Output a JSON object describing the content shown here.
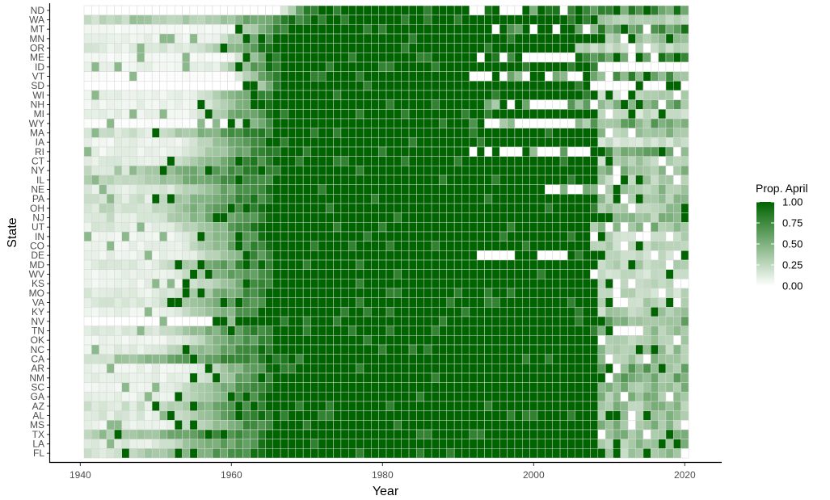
{
  "chart_data": {
    "type": "heatmap",
    "xlabel": "Year",
    "ylabel": "State",
    "x_start": 1941,
    "x_end": 2020,
    "xlim": [
      1936.5,
      2024.5
    ],
    "x_ticks": [
      "1940",
      "1960",
      "1980",
      "2000",
      "2020"
    ],
    "rows_top_to_bottom": [
      "ND",
      "WA",
      "MT",
      "MN",
      "OR",
      "ME",
      "ID",
      "VT",
      "SD",
      "WI",
      "NH",
      "MI",
      "WY",
      "MA",
      "IA",
      "RI",
      "CT",
      "NY",
      "IL",
      "NE",
      "PA",
      "OH",
      "NJ",
      "UT",
      "IN",
      "CO",
      "DE",
      "MD",
      "WV",
      "KS",
      "MO",
      "VA",
      "KY",
      "NV",
      "TN",
      "OK",
      "NC",
      "CA",
      "AR",
      "NM",
      "SC",
      "GA",
      "AZ",
      "AL",
      "MS",
      "TX",
      "LA",
      "FL"
    ],
    "legend": {
      "title": "Prop. April",
      "labels": [
        "1.00",
        "0.75",
        "0.50",
        "0.25",
        "0.00"
      ],
      "values": [
        1.0,
        0.75,
        0.5,
        0.25,
        0.0
      ],
      "low_color": "#ffffff",
      "high_color": "#006400",
      "placement": "right"
    },
    "state_profiles": {
      "ND": {
        "rise": 1966,
        "full": 1971,
        "end": 1992,
        "pre": 0.0,
        "post": 0.75,
        "gaps": [
          [
            1992,
            1993
          ],
          [
            1997,
            1998
          ]
        ]
      },
      "WA": {
        "rise": 1958,
        "full": 1970,
        "end": 2008,
        "pre": 0.35,
        "post": 0.3
      },
      "MT": {
        "rise": 1960,
        "full": 1968,
        "end": 1993,
        "pre": 0.05,
        "post": 0.7,
        "gaps": [
          [
            1994,
            1996
          ],
          [
            2000,
            2005
          ]
        ]
      },
      "MN": {
        "rise": 1958,
        "full": 1966,
        "end": 2008,
        "pre": 0.1,
        "post": 0.35
      },
      "OR": {
        "rise": 1955,
        "full": 1966,
        "end": 2005,
        "pre": 0.15,
        "post": 0.3
      },
      "ME": {
        "rise": 1960,
        "full": 1967,
        "end": 1993,
        "pre": 0.05,
        "post": 0.7,
        "gaps": [
          [
            1993,
            1994
          ],
          [
            1998,
            2004
          ]
        ]
      },
      "ID": {
        "rise": 1958,
        "full": 1966,
        "end": 2008,
        "pre": 0.1,
        "post": 0.0
      },
      "VT": {
        "rise": 1960,
        "full": 1967,
        "end": 1992,
        "pre": 0.02,
        "post": 0.6,
        "gaps": [
          [
            1992,
            1996
          ],
          [
            1999,
            2002
          ],
          [
            2005,
            2007
          ]
        ]
      },
      "SD": {
        "rise": 1962,
        "full": 1967,
        "end": 2007,
        "pre": 0.0,
        "post": 0.0
      },
      "WI": {
        "rise": 1955,
        "full": 1966,
        "end": 2008,
        "pre": 0.1,
        "post": 0.25
      },
      "NH": {
        "rise": 1956,
        "full": 1966,
        "end": 1993,
        "pre": 0.1,
        "post": 0.5,
        "gaps": [
          [
            1996,
            1998
          ],
          [
            2001,
            2004
          ]
        ]
      },
      "MI": {
        "rise": 1955,
        "full": 1966,
        "end": 2008,
        "pre": 0.1,
        "post": 0.2
      },
      "WY": {
        "rise": 1960,
        "full": 1966,
        "end": 1991,
        "pre": 0.02,
        "post": 0.5,
        "gaps": [
          [
            1993,
            1995
          ],
          [
            1998,
            2004
          ]
        ]
      },
      "MA": {
        "rise": 1950,
        "full": 1966,
        "end": 2008,
        "pre": 0.2,
        "post": 0.4
      },
      "IA": {
        "rise": 1954,
        "full": 1966,
        "end": 2008,
        "pre": 0.1,
        "post": 0.2
      },
      "RI": {
        "rise": 1953,
        "full": 1967,
        "end": 1992,
        "pre": 0.1,
        "post": 0.6,
        "gaps": [
          [
            1992,
            1999
          ],
          [
            2001,
            2003
          ],
          [
            2005,
            2009
          ]
        ]
      },
      "CT": {
        "rise": 1952,
        "full": 1966,
        "end": 2008,
        "pre": 0.15,
        "post": 0.3
      },
      "NY": {
        "rise": 1948,
        "full": 1966,
        "end": 2008,
        "pre": 0.3,
        "post": 0.4
      },
      "IL": {
        "rise": 1948,
        "full": 1966,
        "end": 2008,
        "pre": 0.3,
        "post": 0.35
      },
      "NE": {
        "rise": 1952,
        "full": 1966,
        "end": 2002,
        "pre": 0.15,
        "post": 0.4,
        "gaps": [
          [
            2002,
            2003
          ],
          [
            2005,
            2006
          ]
        ]
      },
      "PA": {
        "rise": 1950,
        "full": 1966,
        "end": 2008,
        "pre": 0.2,
        "post": 0.35
      },
      "OH": {
        "rise": 1950,
        "full": 1966,
        "end": 2008,
        "pre": 0.25,
        "post": 0.35
      },
      "NJ": {
        "rise": 1950,
        "full": 1966,
        "end": 2008,
        "pre": 0.2,
        "post": 0.4
      },
      "UT": {
        "rise": 1952,
        "full": 1966,
        "end": 2007,
        "pre": 0.15,
        "post": 0.45
      },
      "IN": {
        "rise": 1953,
        "full": 1966,
        "end": 2007,
        "pre": 0.1,
        "post": 0.25
      },
      "CO": {
        "rise": 1953,
        "full": 1966,
        "end": 2007,
        "pre": 0.1,
        "post": 0.3
      },
      "DE": {
        "rise": 1955,
        "full": 1966,
        "end": 2008,
        "pre": 0.1,
        "post": 0.2,
        "gaps": [
          [
            1993,
            2004
          ]
        ]
      },
      "MD": {
        "rise": 1950,
        "full": 1966,
        "end": 2008,
        "pre": 0.15,
        "post": 0.3
      },
      "WV": {
        "rise": 1952,
        "full": 1966,
        "end": 2007,
        "pre": 0.1,
        "post": 0.2
      },
      "KS": {
        "rise": 1954,
        "full": 1966,
        "end": 2008,
        "pre": 0.1,
        "post": 0.25
      },
      "MO": {
        "rise": 1952,
        "full": 1966,
        "end": 2008,
        "pre": 0.15,
        "post": 0.25
      },
      "VA": {
        "rise": 1950,
        "full": 1966,
        "end": 2008,
        "pre": 0.15,
        "post": 0.3
      },
      "KY": {
        "rise": 1952,
        "full": 1966,
        "end": 2008,
        "pre": 0.1,
        "post": 0.3
      },
      "NV": {
        "rise": 1958,
        "full": 1962,
        "end": 2009,
        "pre": 0.0,
        "post": 0.55
      },
      "TN": {
        "rise": 1950,
        "full": 1966,
        "end": 2008,
        "pre": 0.15,
        "post": 0.35
      },
      "OK": {
        "rise": 1953,
        "full": 1966,
        "end": 2008,
        "pre": 0.1,
        "post": 0.3
      },
      "NC": {
        "rise": 1950,
        "full": 1966,
        "end": 2008,
        "pre": 0.15,
        "post": 0.35
      },
      "CA": {
        "rise": 1945,
        "full": 1970,
        "end": 2008,
        "pre": 0.4,
        "post": 0.4
      },
      "AR": {
        "rise": 1955,
        "full": 1966,
        "end": 2008,
        "pre": 0.1,
        "post": 0.5
      },
      "NM": {
        "rise": 1955,
        "full": 1966,
        "end": 2009,
        "pre": 0.1,
        "post": 0.55
      },
      "SC": {
        "rise": 1952,
        "full": 1966,
        "end": 2008,
        "pre": 0.1,
        "post": 0.4
      },
      "GA": {
        "rise": 1952,
        "full": 1966,
        "end": 2008,
        "pre": 0.1,
        "post": 0.4
      },
      "AZ": {
        "rise": 1950,
        "full": 1966,
        "end": 2008,
        "pre": 0.2,
        "post": 0.4
      },
      "AL": {
        "rise": 1952,
        "full": 1966,
        "end": 2008,
        "pre": 0.15,
        "post": 0.4
      },
      "MS": {
        "rise": 1952,
        "full": 1966,
        "end": 2008,
        "pre": 0.1,
        "post": 0.4
      },
      "TX": {
        "rise": 1945,
        "full": 1966,
        "end": 2008,
        "pre": 0.3,
        "post": 0.4
      },
      "LA": {
        "rise": 1950,
        "full": 1966,
        "end": 2008,
        "pre": 0.15,
        "post": 0.4
      },
      "FL": {
        "rise": 1945,
        "full": 1966,
        "end": 2008,
        "pre": 0.2,
        "post": 0.35
      }
    }
  }
}
